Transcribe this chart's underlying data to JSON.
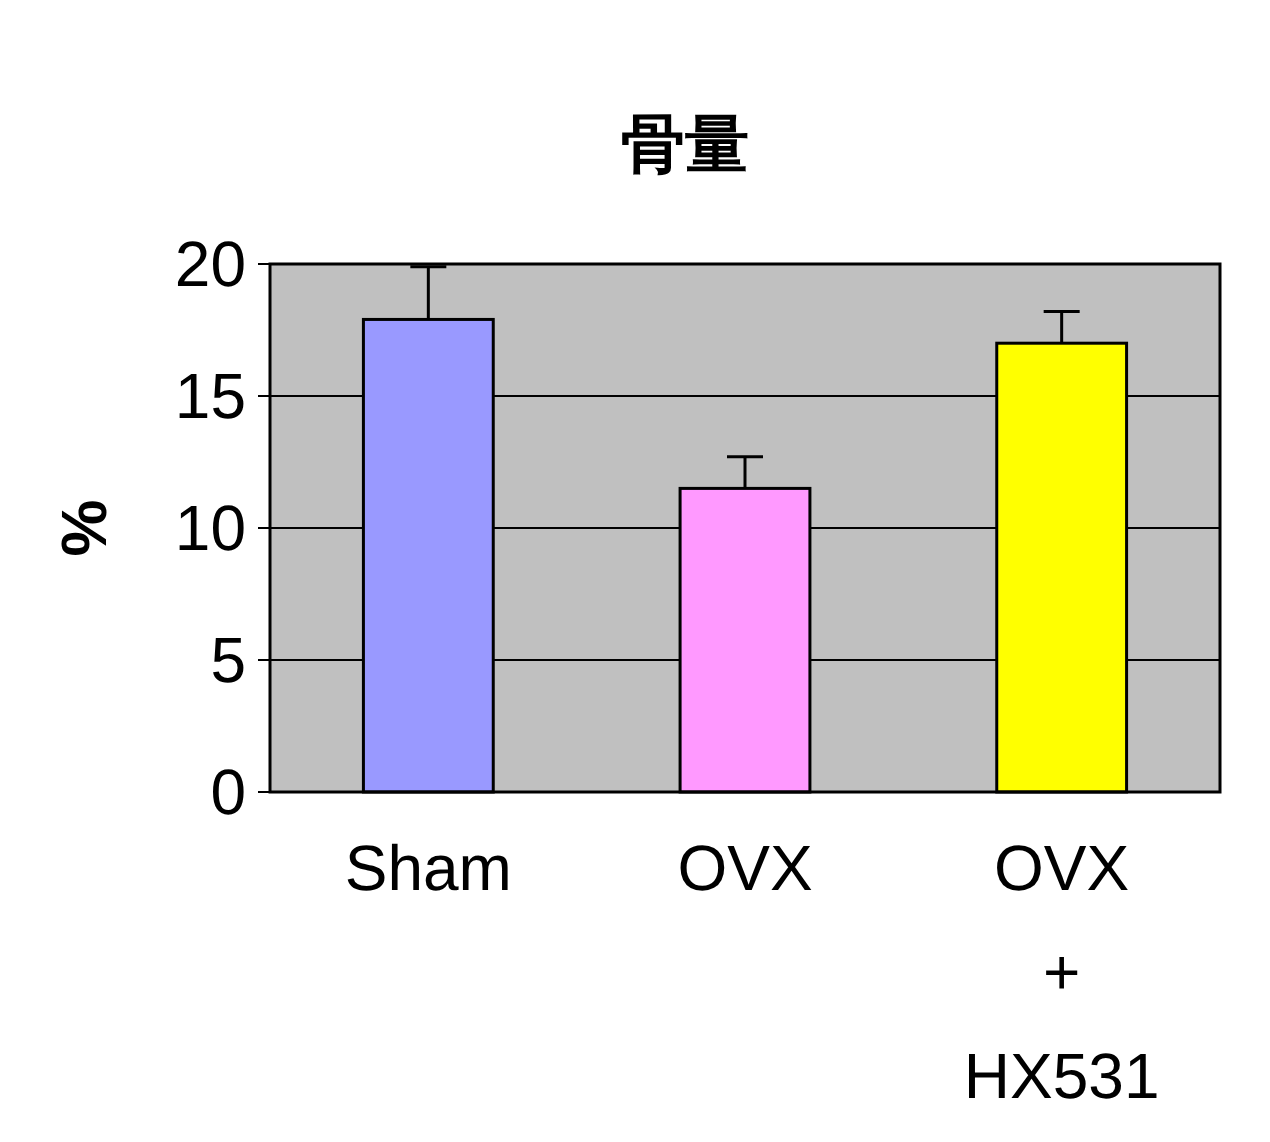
{
  "chart_data": {
    "type": "bar",
    "title": "骨量",
    "ylabel": "%",
    "categories": [
      "Sham",
      "OVX",
      "OVX\n+\nHX531"
    ],
    "values": [
      17.9,
      11.5,
      17.0
    ],
    "colors": [
      "#9999ff",
      "#ff99ff",
      "#ffff00"
    ],
    "errors": [
      [
        17.9,
        19.9
      ],
      [
        11.5,
        12.7
      ],
      [
        17.0,
        18.2
      ]
    ],
    "ylim": [
      0,
      20
    ],
    "yticks": [
      0,
      5,
      10,
      15,
      20
    ],
    "grid": "y"
  }
}
